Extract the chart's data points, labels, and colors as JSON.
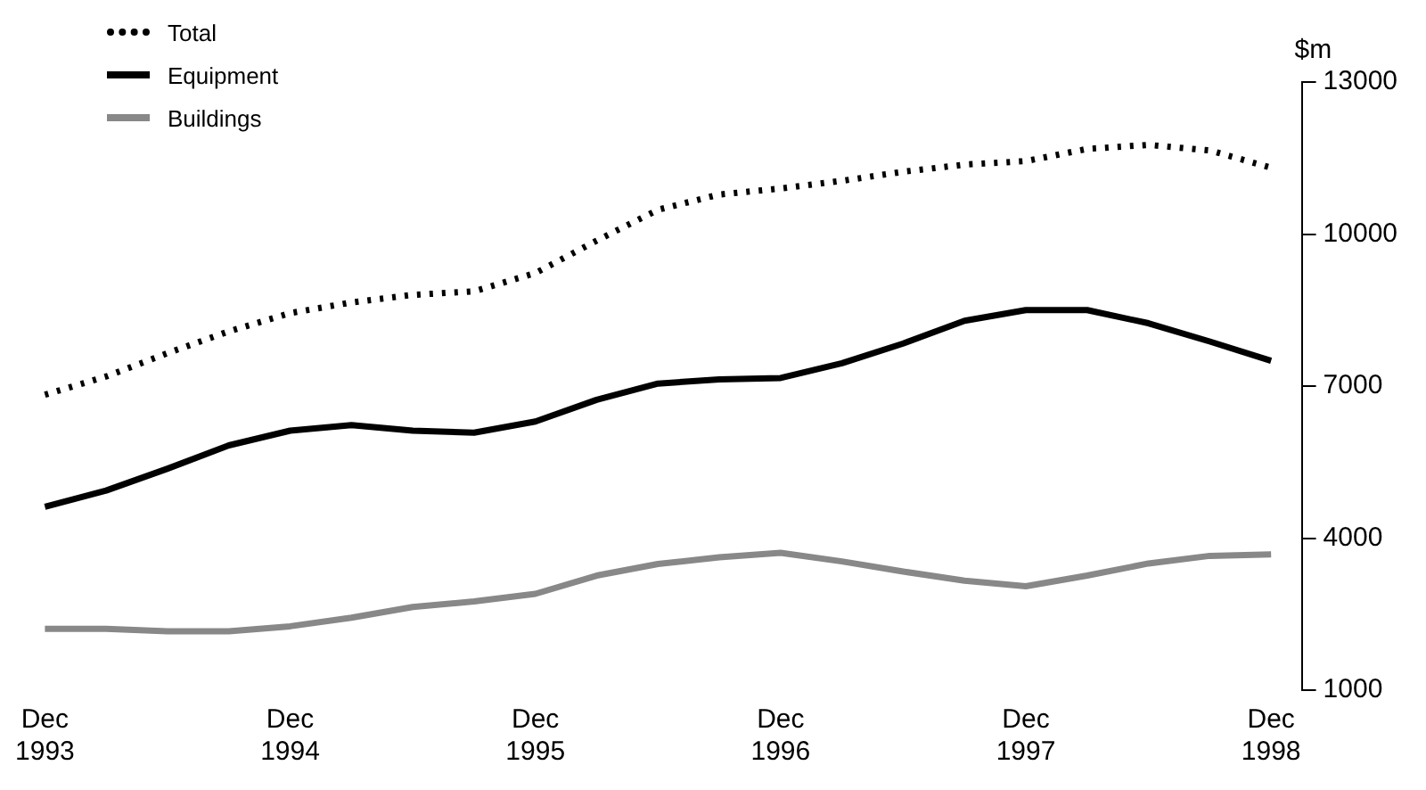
{
  "chart_data": {
    "type": "line",
    "ylabel": "$m",
    "categories": [
      "Dec 1993",
      null,
      null,
      null,
      "Dec 1994",
      null,
      null,
      null,
      "Dec 1995",
      null,
      null,
      null,
      "Dec 1996",
      null,
      null,
      null,
      "Dec 1997",
      null,
      null,
      null,
      "Dec 1998"
    ],
    "series": [
      {
        "name": "Total",
        "color": "#000000",
        "line_style": "dotted",
        "values": [
          6830,
          7190,
          7650,
          8080,
          8440,
          8650,
          8800,
          8870,
          9230,
          9870,
          10480,
          10780,
          10900,
          11050,
          11230,
          11370,
          11440,
          11680,
          11760,
          11650,
          11310
        ]
      },
      {
        "name": "Equipment",
        "color": "#000000",
        "line_style": "solid",
        "values": [
          4620,
          4940,
          5370,
          5830,
          6120,
          6230,
          6120,
          6080,
          6300,
          6730,
          7050,
          7130,
          7160,
          7450,
          7840,
          8290,
          8500,
          8500,
          8240,
          7880,
          7500
        ]
      },
      {
        "name": "Buildings",
        "color": "#888888",
        "line_style": "solid",
        "values": [
          2210,
          2210,
          2160,
          2160,
          2260,
          2430,
          2640,
          2750,
          2900,
          3260,
          3490,
          3620,
          3710,
          3540,
          3340,
          3160,
          3050,
          3260,
          3500,
          3650,
          3680
        ]
      }
    ],
    "ylim": [
      1000,
      13000
    ],
    "yticks": [
      1000,
      4000,
      7000,
      10000,
      13000
    ],
    "grid": false,
    "legend": "top left",
    "marker": "none"
  }
}
